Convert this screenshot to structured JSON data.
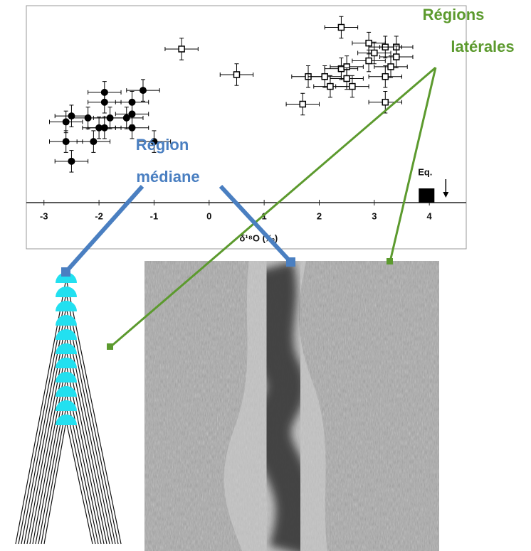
{
  "chart_data": {
    "type": "scatter",
    "x_label": "δ¹⁸O (‰)",
    "xlim": [
      -3.32,
      4.67
    ],
    "ylim": [
      0,
      10
    ],
    "xticks": [
      -3,
      -2,
      -1,
      0,
      1,
      2,
      3,
      4
    ],
    "series": [
      {
        "marker": "filled-circle",
        "color": "#000000",
        "xerr": 0.3,
        "yerr": 0.55,
        "x": [
          -1.9,
          -1.2,
          -1.9,
          -1.4,
          -2.5,
          -2.6,
          -2.2,
          -1.8,
          -1.5,
          -1.4,
          -2.0,
          -1.9,
          -1.4,
          -2.6,
          -2.1,
          -1.0,
          -2.5
        ],
        "y": [
          5.6,
          5.7,
          5.1,
          5.1,
          4.4,
          4.1,
          4.3,
          4.3,
          4.3,
          4.5,
          3.8,
          3.8,
          3.8,
          3.1,
          3.1,
          3.1,
          2.1
        ]
      },
      {
        "marker": "open-square",
        "color": "#000000",
        "xerr": 0.3,
        "yerr": 0.55,
        "x": [
          -0.5,
          0.5,
          2.4,
          1.8,
          1.7,
          2.1,
          2.2,
          2.4,
          2.5,
          2.6,
          2.9,
          3.0,
          3.2,
          3.4,
          3.4,
          2.9,
          3.2,
          3.2,
          3.3,
          2.5
        ],
        "y": [
          7.8,
          6.5,
          8.9,
          6.4,
          5.0,
          6.4,
          5.9,
          6.8,
          6.9,
          5.9,
          8.1,
          7.6,
          7.9,
          7.9,
          7.4,
          7.2,
          6.4,
          5.1,
          6.9,
          6.3
        ]
      }
    ],
    "equilibrium": {
      "label": "Eq.",
      "x": 3.95
    }
  },
  "annotations": {
    "lateral": [
      "Régions",
      "latérales"
    ],
    "median": [
      "Région",
      "médiane"
    ]
  }
}
